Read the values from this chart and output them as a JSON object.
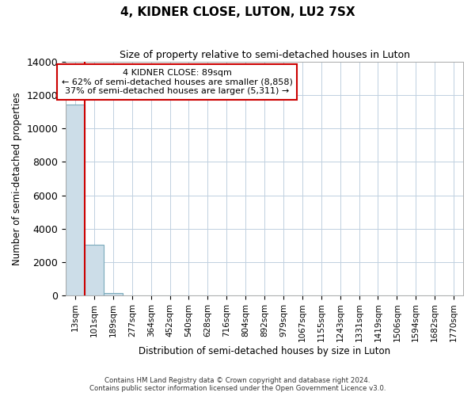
{
  "title": "4, KIDNER CLOSE, LUTON, LU2 7SX",
  "subtitle": "Size of property relative to semi-detached houses in Luton",
  "xlabel": "Distribution of semi-detached houses by size in Luton",
  "ylabel": "Number of semi-detached properties",
  "bar_labels": [
    "13sqm",
    "101sqm",
    "189sqm",
    "277sqm",
    "364sqm",
    "452sqm",
    "540sqm",
    "628sqm",
    "716sqm",
    "804sqm",
    "892sqm",
    "979sqm",
    "1067sqm",
    "1155sqm",
    "1243sqm",
    "1331sqm",
    "1419sqm",
    "1506sqm",
    "1594sqm",
    "1682sqm",
    "1770sqm"
  ],
  "bar_values": [
    11450,
    3020,
    120,
    0,
    0,
    0,
    0,
    0,
    0,
    0,
    0,
    0,
    0,
    0,
    0,
    0,
    0,
    0,
    0,
    0,
    0
  ],
  "bar_color": "#ccdde8",
  "bar_edge_color": "#7aaabb",
  "ylim": [
    0,
    14000
  ],
  "yticks": [
    0,
    2000,
    4000,
    6000,
    8000,
    10000,
    12000,
    14000
  ],
  "annotation_line1": "4 KIDNER CLOSE: 89sqm",
  "annotation_line2": "← 62% of semi-detached houses are smaller (8,858)",
  "annotation_line3": "37% of semi-detached houses are larger (5,311) →",
  "property_line_x": 0.5,
  "property_line_color": "#cc0000",
  "footer_line1": "Contains HM Land Registry data © Crown copyright and database right 2024.",
  "footer_line2": "Contains public sector information licensed under the Open Government Licence v3.0.",
  "background_color": "#ffffff",
  "grid_color": "#c0d0e0"
}
